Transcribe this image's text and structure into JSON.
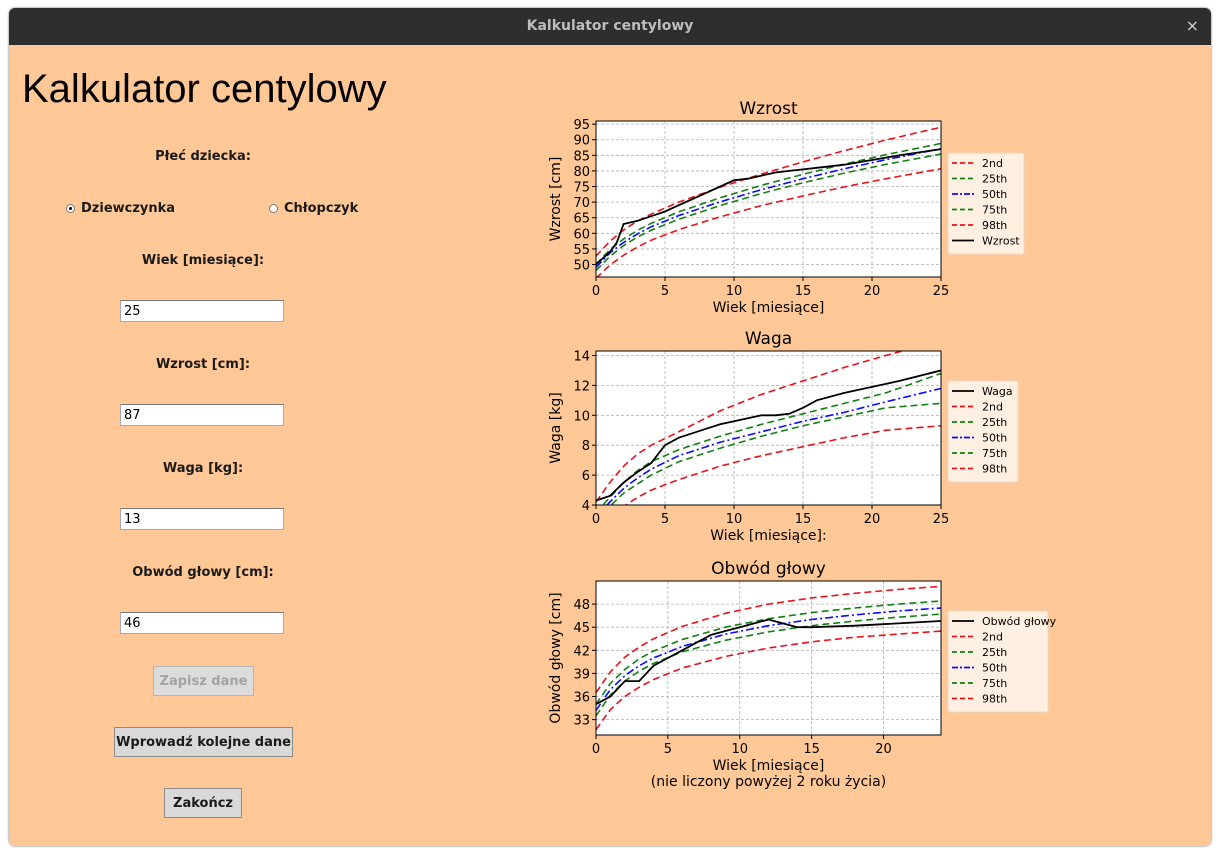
{
  "window": {
    "title": "Kalkulator centylowy",
    "close_glyph": "×"
  },
  "app": {
    "heading": "Kalkulator centylowy"
  },
  "form": {
    "sex_label": "Płeć dziecka:",
    "sex_options": [
      {
        "label": "Dziewczynka",
        "selected": true
      },
      {
        "label": "Chłopczyk",
        "selected": false
      }
    ],
    "age_label": "Wiek [miesiące]:",
    "age_value": "25",
    "height_label": "Wzrost [cm]:",
    "height_value": "87",
    "weight_label": "Waga [kg]:",
    "weight_value": "13",
    "head_label": "Obwód głowy [cm]:",
    "head_value": "46",
    "save_label": "Zapisz dane",
    "next_label": "Wprowadź kolejne dane",
    "quit_label": "Zakończ"
  },
  "colors": {
    "background": "#ffc896",
    "red": "#e8121a",
    "green": "#128012",
    "blue": "#0a0aff",
    "black": "#000000"
  },
  "chart_data": [
    {
      "type": "line",
      "title": "Wzrost",
      "xlabel": "Wiek [miesiące]",
      "xlabel2": "",
      "ylabel": "Wzrost [cm]",
      "xlim": [
        0,
        25
      ],
      "ylim": [
        46,
        96
      ],
      "xticks": [
        0,
        5,
        10,
        15,
        20,
        25
      ],
      "yticks": [
        50,
        55,
        60,
        65,
        70,
        75,
        80,
        85,
        90,
        95
      ],
      "grid": true,
      "legend_position": "right",
      "legend_order": [
        "2nd",
        "25th",
        "50th",
        "75th",
        "98th",
        "Wzrost"
      ],
      "percentiles": {
        "x": [
          0,
          1,
          2,
          3,
          4,
          6,
          9,
          12,
          15,
          18,
          21,
          25
        ],
        "p2": [
          45.6,
          49.8,
          53.0,
          55.6,
          57.8,
          61.2,
          65.3,
          68.9,
          72.0,
          74.9,
          77.5,
          80.7
        ],
        "p25": [
          48.1,
          52.6,
          56.1,
          58.8,
          61.0,
          64.5,
          68.9,
          72.8,
          76.2,
          79.3,
          82.1,
          85.4
        ],
        "p50": [
          49.1,
          53.7,
          57.1,
          59.8,
          62.1,
          65.7,
          70.1,
          74.0,
          77.5,
          80.7,
          83.6,
          87.1
        ],
        "p75": [
          50.1,
          54.7,
          58.2,
          60.9,
          63.2,
          66.9,
          71.4,
          75.4,
          78.9,
          82.2,
          85.2,
          88.8
        ],
        "p98": [
          52.7,
          57.4,
          61.1,
          63.9,
          66.2,
          70.0,
          74.8,
          79.0,
          82.9,
          86.5,
          89.9,
          94.0
        ]
      },
      "measurement_name": "Wzrost",
      "measurement": {
        "x": [
          0,
          1,
          1.5,
          2,
          3,
          4,
          5,
          6,
          7,
          8,
          9,
          10,
          11,
          12,
          13,
          14,
          15,
          16,
          18,
          20,
          22,
          25
        ],
        "y": [
          50,
          54,
          57,
          63,
          64,
          65.5,
          67,
          69,
          71,
          73,
          75,
          77,
          77.5,
          78.5,
          79.5,
          80,
          80.5,
          81,
          82,
          83.5,
          85,
          87
        ]
      }
    },
    {
      "type": "line",
      "title": "Waga",
      "xlabel": "Wiek [miesiące]:",
      "xlabel2": "",
      "ylabel": "Waga [kg]",
      "xlim": [
        0,
        25
      ],
      "ylim": [
        4,
        14.3
      ],
      "xticks": [
        0,
        5,
        10,
        15,
        20,
        25
      ],
      "yticks": [
        4,
        6,
        8,
        10,
        12,
        14
      ],
      "grid": true,
      "legend_position": "right",
      "legend_order": [
        "Waga",
        "2nd",
        "25th",
        "50th",
        "75th",
        "98th"
      ],
      "percentiles": {
        "x": [
          0,
          1,
          2,
          3,
          4,
          6,
          9,
          12,
          15,
          18,
          21,
          25
        ],
        "p2": [
          2.4,
          3.2,
          3.9,
          4.5,
          5.0,
          5.7,
          6.6,
          7.3,
          7.9,
          8.5,
          9.0,
          9.3
        ],
        "p25": [
          3.0,
          3.9,
          4.8,
          5.4,
          6.0,
          6.9,
          7.8,
          8.6,
          9.3,
          9.9,
          10.5,
          10.8
        ],
        "p50": [
          3.2,
          4.2,
          5.1,
          5.8,
          6.4,
          7.3,
          8.2,
          8.9,
          9.6,
          10.2,
          10.9,
          11.8
        ],
        "p75": [
          3.5,
          4.5,
          5.5,
          6.3,
          6.9,
          7.7,
          8.6,
          9.4,
          10.1,
          10.8,
          11.5,
          12.8
        ],
        "p98": [
          4.2,
          5.5,
          6.6,
          7.4,
          8.0,
          8.9,
          10.3,
          11.4,
          12.3,
          13.2,
          14.0,
          15.0
        ]
      },
      "measurement_name": "Waga",
      "measurement": {
        "x": [
          0,
          1,
          2,
          3,
          4,
          5,
          6,
          7,
          8,
          9,
          10,
          11,
          12,
          13,
          14,
          15,
          16,
          18,
          20,
          22,
          25
        ],
        "y": [
          4.3,
          4.6,
          5.5,
          6.2,
          6.8,
          8.0,
          8.5,
          8.8,
          9.1,
          9.4,
          9.6,
          9.8,
          10.0,
          10.0,
          10.1,
          10.5,
          11.0,
          11.5,
          11.9,
          12.3,
          13.0
        ]
      }
    },
    {
      "type": "line",
      "title": "Obwód głowy",
      "xlabel": "Wiek [miesiące]",
      "xlabel2": "(nie liczony powyżej 2 roku życia)",
      "ylabel": "Obwód głowy [cm]",
      "xlim": [
        0,
        24
      ],
      "ylim": [
        31,
        51
      ],
      "xticks": [
        0,
        5,
        10,
        15,
        20
      ],
      "yticks": [
        33,
        36,
        39,
        42,
        45,
        48
      ],
      "grid": true,
      "legend_position": "right",
      "legend_order": [
        "Obwód głowy",
        "2nd",
        "25th",
        "50th",
        "75th",
        "98th"
      ],
      "percentiles": {
        "x": [
          0,
          1,
          2,
          3,
          4,
          6,
          9,
          12,
          15,
          18,
          21,
          24
        ],
        "p2": [
          31.7,
          34.3,
          36.0,
          37.2,
          38.2,
          39.7,
          41.2,
          42.3,
          43.1,
          43.7,
          44.1,
          44.5
        ],
        "p25": [
          33.5,
          36.2,
          38.0,
          39.3,
          40.3,
          41.8,
          43.3,
          44.4,
          45.2,
          45.8,
          46.3,
          46.7
        ],
        "p50": [
          34.2,
          36.9,
          38.7,
          40.0,
          41.0,
          42.5,
          44.1,
          45.2,
          46.0,
          46.6,
          47.1,
          47.5
        ],
        "p75": [
          35.0,
          37.7,
          39.5,
          40.9,
          41.9,
          43.4,
          45.0,
          46.1,
          46.9,
          47.5,
          48.0,
          48.4
        ],
        "p98": [
          36.5,
          39.2,
          41.1,
          42.4,
          43.5,
          45.1,
          46.8,
          48.0,
          48.8,
          49.4,
          49.9,
          50.3
        ]
      },
      "measurement_name": "Obwód głowy",
      "measurement": {
        "x": [
          0,
          1,
          2,
          3,
          4,
          5,
          6,
          7,
          8,
          9,
          10,
          11,
          12,
          13,
          14,
          15,
          18,
          21,
          24
        ],
        "y": [
          35,
          36,
          38,
          38,
          40,
          41,
          42,
          43,
          44,
          44.5,
          45,
          45.5,
          46,
          45.5,
          45,
          45,
          45.2,
          45.5,
          45.8
        ]
      }
    }
  ]
}
